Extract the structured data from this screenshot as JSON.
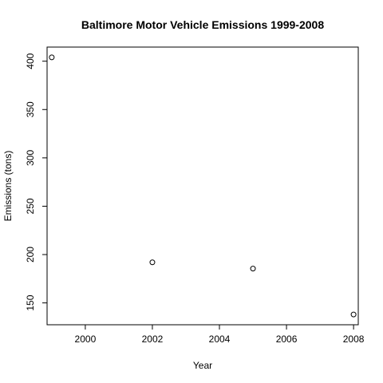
{
  "chart_data": {
    "type": "scatter",
    "title": "Baltimore Motor Vehicle Emissions 1999-2008",
    "xlabel": "Year",
    "ylabel": "Emissions (tons)",
    "x": [
      1999,
      2002,
      2005,
      2008
    ],
    "y": [
      404,
      192,
      185.5,
      138
    ],
    "xticks": [
      "2000",
      "2002",
      "2004",
      "2006",
      "2008"
    ],
    "yticks": [
      "150",
      "200",
      "250",
      "300",
      "350",
      "400"
    ],
    "xlim": [
      1998.86,
      2008.14
    ],
    "ylim": [
      127.4,
      414.6
    ],
    "grid": false,
    "legend": "none",
    "marker": "open-circle"
  }
}
